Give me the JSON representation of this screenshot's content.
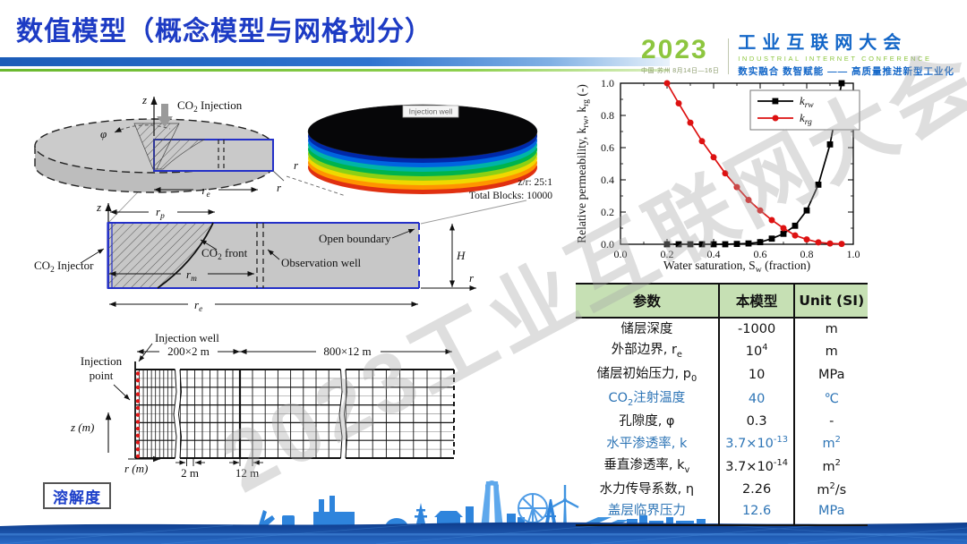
{
  "slide": {
    "title": "数值模型（概念模型与网格划分）"
  },
  "logo": {
    "year": "2023",
    "event_info": "中国·苏州  8月14日—16日",
    "name_cn": "工业互联网大会",
    "name_en": "INDUSTRIAL INTERNET CONFERENCE",
    "slogan": "数实融合  数智赋能 —— 高质量推进新型工业化"
  },
  "watermark": "2023工业互联网大会",
  "concept3d": {
    "z_label": "z",
    "phi_label": "φ",
    "co2_injection": "CO_{2} Injection",
    "re_label": "r_{e}",
    "r_label": "r"
  },
  "mesh3d": {
    "injection_well": "Injection well",
    "ratio": "z/r: 25:1",
    "total_blocks": "Total Blocks: 10000",
    "r_label": "r"
  },
  "section2d": {
    "z_label": "z",
    "rp_label": "r_{p}",
    "co2_injector": "CO_{2} Injector",
    "co2_front": "CO_{2} front",
    "observation_well": "Observation well",
    "open_boundary": "Open boundary",
    "rm_label": "r_{m}",
    "re_label": "r_{e}",
    "h_label": "H",
    "r_label": "r"
  },
  "grid2d": {
    "injection_well": "Injection well",
    "injection_point_line1": "Injection",
    "injection_point_line2": "point",
    "dim_left": "200×2 m",
    "dim_right": "800×12 m",
    "z_axis": "z (m)",
    "r_axis": "r (m)",
    "cell_left": "2 m",
    "cell_right": "12 m"
  },
  "solubility": "溶解度",
  "chart_data": {
    "type": "line",
    "title": "",
    "xlabel": "Water saturation, S_{w} (fraction)",
    "ylabel": "Relative permeability, k_{rw}, k_{rg} (-)",
    "xlim": [
      0.0,
      1.0
    ],
    "ylim": [
      0.0,
      1.0
    ],
    "xticks": [
      0.0,
      0.2,
      0.4,
      0.6,
      0.8,
      1.0
    ],
    "yticks": [
      0.0,
      0.2,
      0.4,
      0.6,
      0.8,
      1.0
    ],
    "grid": false,
    "legend_position": "top-center",
    "x": [
      0.2,
      0.25,
      0.3,
      0.35,
      0.4,
      0.45,
      0.5,
      0.55,
      0.6,
      0.65,
      0.7,
      0.75,
      0.8,
      0.85,
      0.9,
      0.95
    ],
    "series": [
      {
        "name": "k_{rw}",
        "color": "#000000",
        "marker": "square",
        "values": [
          0.0,
          0.0,
          0.0,
          0.0,
          0.0,
          0.0,
          0.002,
          0.005,
          0.013,
          0.035,
          0.065,
          0.115,
          0.21,
          0.37,
          0.62,
          1.0
        ]
      },
      {
        "name": "k_{rg}",
        "color": "#dd1111",
        "marker": "circle",
        "values": [
          1.0,
          0.875,
          0.755,
          0.64,
          0.54,
          0.44,
          0.355,
          0.275,
          0.21,
          0.15,
          0.1,
          0.055,
          0.03,
          0.012,
          0.005,
          0.002
        ]
      }
    ]
  },
  "table": {
    "headers": [
      "参数",
      "本模型",
      "Unit (SI)"
    ],
    "colors": {
      "header_bg": "#c6e0b4",
      "highlight_text": "#2e75b6"
    },
    "rows": [
      {
        "param": "储层深度",
        "value": "-1000",
        "unit": "m",
        "highlight": false
      },
      {
        "param": "外部边界, r_{e}",
        "value": "10^{4}",
        "unit": "m",
        "highlight": false
      },
      {
        "param": "储层初始压力, p_{0}",
        "value": "10",
        "unit": "MPa",
        "highlight": false
      },
      {
        "param": "CO_{2}注射温度",
        "value": "40",
        "unit": "℃",
        "highlight": true
      },
      {
        "param": "孔隙度, φ",
        "value": "0.3",
        "unit": "-",
        "highlight": false
      },
      {
        "param": "水平渗透率, k",
        "value": "3.7×10^{-13}",
        "unit": "m^{2}",
        "highlight": true
      },
      {
        "param": "垂直渗透率, k_{v}",
        "value": "3.7×10^{-14}",
        "unit": "m^{2}",
        "highlight": false
      },
      {
        "param": "水力传导系数, η",
        "value": "2.26",
        "unit": "m^{2}/s",
        "highlight": false
      },
      {
        "param": "盖层临界压力",
        "value": "12.6",
        "unit": "MPa",
        "highlight": true
      }
    ]
  }
}
